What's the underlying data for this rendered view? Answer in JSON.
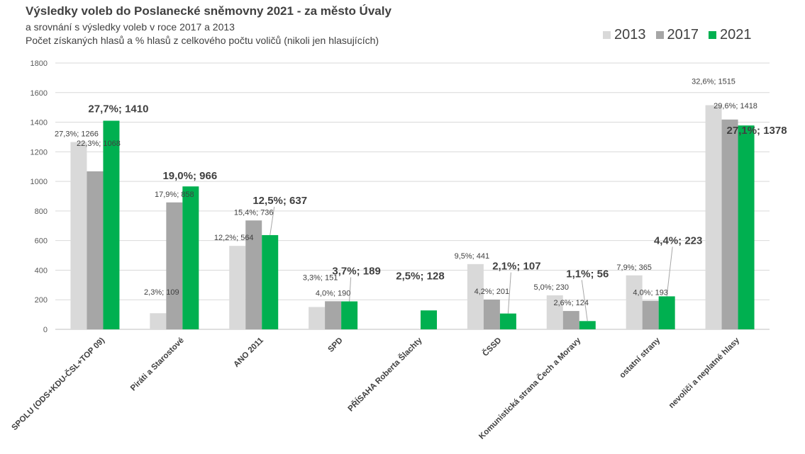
{
  "chart_data": {
    "type": "bar",
    "title": "Výsledky voleb do Poslanecké sněmovny 2021 - za město Úvaly",
    "subtitle_lines": [
      "a srovnání s výsledky voleb v roce 2017 a 2013",
      "Počet získaných hlasů a % hlasů z celkového počtu voličů (nikoli jen hlasujících)"
    ],
    "xlabel": "",
    "ylabel": "",
    "ylim": [
      0,
      1800
    ],
    "yticks": [
      0,
      200,
      400,
      600,
      800,
      1000,
      1200,
      1400,
      1600,
      1800
    ],
    "grid": true,
    "legend_position": "top-right",
    "categories": [
      "SPOLU (ODS+KDU-ČSL+TOP 09)",
      "Piráti a Starostové",
      "ANO 2011",
      "SPD",
      "PŘÍSAHA Roberta Šlachty",
      "ČSSD",
      "Komunistická strana Čech a Moravy",
      "ostatní strany",
      "nevoliči a neplatné hlasy"
    ],
    "series": [
      {
        "name": "2013",
        "color": "#d9d9d9",
        "values": [
          1266,
          109,
          564,
          151,
          null,
          441,
          230,
          365,
          1515
        ],
        "labels": [
          "27,3%; 1266",
          "2,3%; 109",
          "12,2%; 564",
          "3,3%; 151",
          null,
          "9,5%; 441",
          "5,0%; 230",
          "7,9%; 365",
          "32,6%; 1515"
        ]
      },
      {
        "name": "2017",
        "color": "#a6a6a6",
        "values": [
          1068,
          858,
          736,
          190,
          null,
          201,
          124,
          193,
          1418
        ],
        "labels": [
          "22,3%; 1068",
          "17,9%; 858",
          "15,4%; 736",
          "4,0%; 190",
          null,
          "4,2%; 201",
          "2,6%; 124",
          "4,0%; 193",
          "29,6%; 1418"
        ]
      },
      {
        "name": "2021",
        "color": "#00b050",
        "values": [
          1410,
          966,
          637,
          189,
          128,
          107,
          56,
          223,
          1378
        ],
        "labels": [
          "27,7%; 1410",
          "19,0%; 966",
          "12,5%; 637",
          "3,7%; 189",
          "2,5%; 128",
          "2,1%; 107",
          "1,1%; 56",
          "4,4%; 223",
          "27,1%; 1378"
        ]
      }
    ]
  }
}
